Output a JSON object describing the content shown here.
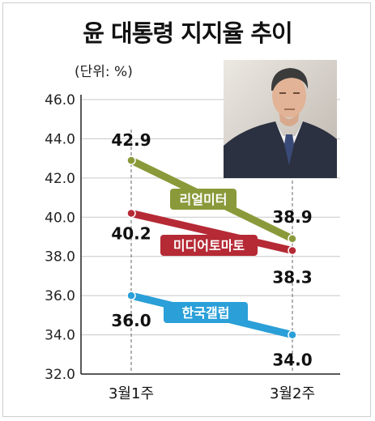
{
  "chart_data": {
    "type": "line",
    "title": "윤 대통령 지지율 추이",
    "unit": "(단위: %)",
    "categories": [
      "3월1주",
      "3월2주"
    ],
    "y_ticks": [
      "46.0",
      "44.0",
      "42.0",
      "40.0",
      "38.0",
      "36.0",
      "34.0",
      "32.0"
    ],
    "ylim": [
      32,
      46
    ],
    "grid": true,
    "series": [
      {
        "name": "리얼미터",
        "values": [
          42.9,
          38.9
        ],
        "labels": [
          "42.9",
          "38.9"
        ],
        "color": "#8a9a3a"
      },
      {
        "name": "미디어토마토",
        "values": [
          40.2,
          38.3
        ],
        "labels": [
          "40.2",
          "38.3"
        ],
        "color": "#b52a35"
      },
      {
        "name": "한국갤럽",
        "values": [
          36.0,
          34.0
        ],
        "labels": [
          "36.0",
          "34.0"
        ],
        "color": "#2a9fd8"
      }
    ]
  },
  "photo": {
    "icon": "president-portrait-photo"
  }
}
